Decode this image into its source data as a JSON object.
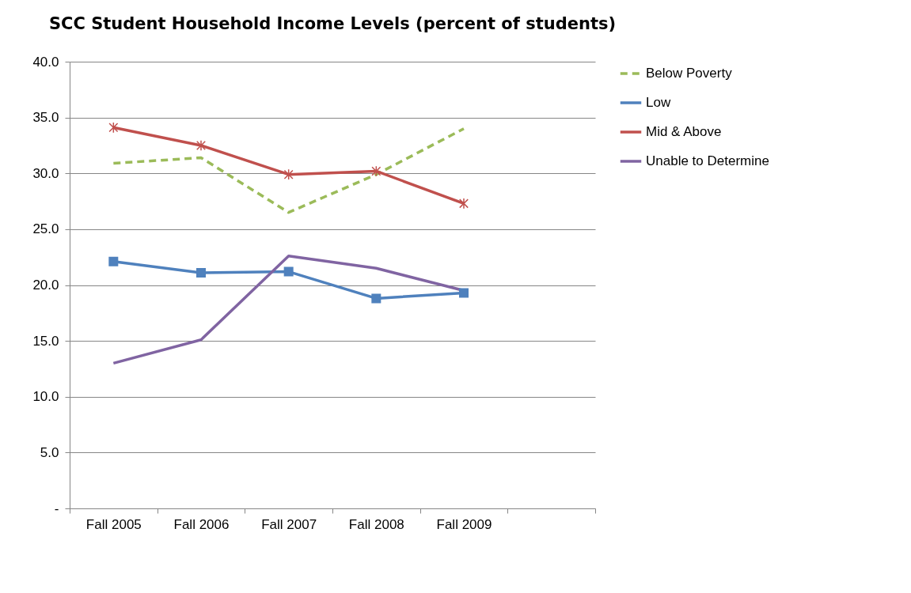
{
  "chart_data": {
    "type": "line",
    "title": "SCC Student Household  Income Levels (percent of students)",
    "categories": [
      "Fall 2005",
      "Fall 2006",
      "Fall 2007",
      "Fall 2008",
      "Fall 2009",
      null
    ],
    "series": [
      {
        "name": "Below Poverty",
        "color": "#9bbb59",
        "line_style": "dashed",
        "marker": "none",
        "values": [
          30.9,
          31.4,
          26.5,
          29.9,
          34.0,
          null
        ]
      },
      {
        "name": "Low",
        "color": "#4f81bd",
        "line_style": "solid",
        "marker": "square",
        "values": [
          22.1,
          21.1,
          21.2,
          18.8,
          19.3,
          null
        ]
      },
      {
        "name": "Mid & Above",
        "color": "#c0504d",
        "line_style": "solid",
        "marker": "cross",
        "values": [
          34.1,
          32.5,
          29.9,
          30.2,
          27.3,
          null
        ]
      },
      {
        "name": "Unable to Determine",
        "color": "#8064a2",
        "line_style": "solid",
        "marker": "none",
        "values": [
          13.0,
          15.1,
          22.6,
          21.5,
          19.5,
          null
        ]
      }
    ],
    "ylim": [
      0,
      40
    ],
    "yticks": [
      {
        "value": 0,
        "label": "-"
      },
      {
        "value": 5,
        "label": "5.0"
      },
      {
        "value": 10,
        "label": "10.0"
      },
      {
        "value": 15,
        "label": "15.0"
      },
      {
        "value": 20,
        "label": "20.0"
      },
      {
        "value": 25,
        "label": "25.0"
      },
      {
        "value": 30,
        "label": "30.0"
      },
      {
        "value": 35,
        "label": "35.0"
      },
      {
        "value": 40,
        "label": "40.0"
      }
    ],
    "grid": "y",
    "legend": "right"
  }
}
